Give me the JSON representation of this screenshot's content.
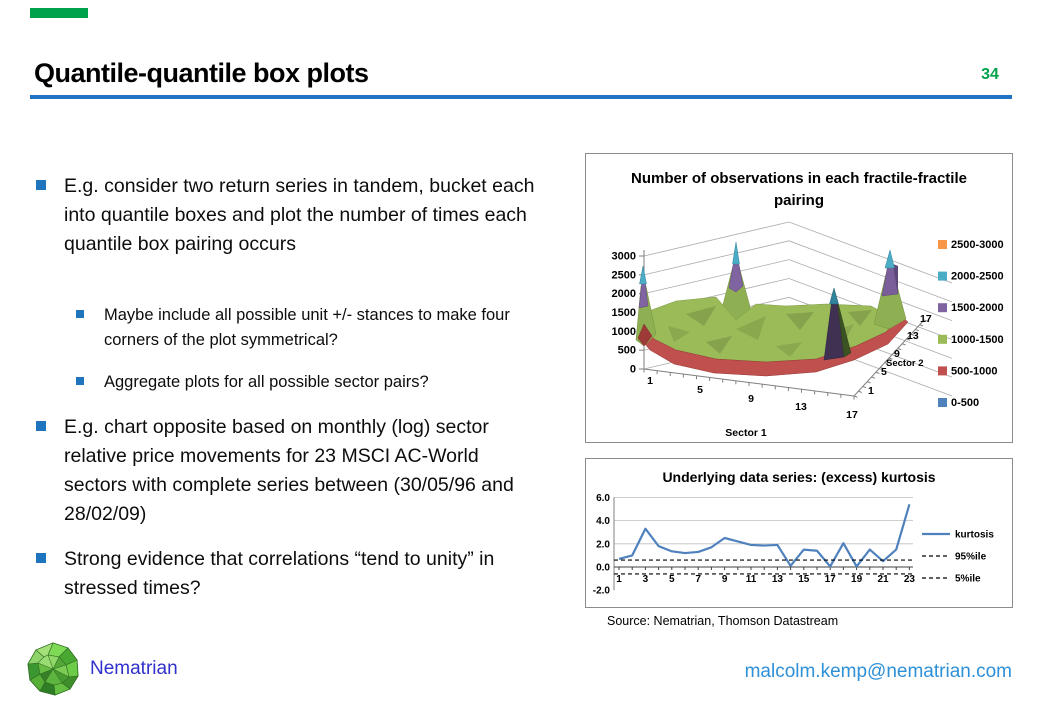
{
  "slide": {
    "title": "Quantile-quantile box plots",
    "page_number": "34",
    "accent_green": "#00A24B",
    "accent_blue": "#1F72C4",
    "bullet_blue": "#1F74BE"
  },
  "bullets": [
    {
      "level": 1,
      "text": "E.g. consider two return series in tandem, bucket each into quantile boxes and plot the number of times each quantile box pairing occurs"
    },
    {
      "level": 2,
      "text": "Maybe include all possible unit +/- stances to make four corners of the plot symmetrical?"
    },
    {
      "level": 2,
      "text": "Aggregate plots for all possible sector pairs?"
    },
    {
      "level": 1,
      "text": "E.g. chart opposite based on monthly (log) sector relative price movements for 23 MSCI AC-World sectors with complete series between (30/05/96 and 28/02/09)"
    },
    {
      "level": 1,
      "text": "Strong evidence that correlations “tend to unity” in stressed times?"
    }
  ],
  "chart_data": [
    {
      "type": "surface",
      "title": "Number of observations in each fractile-fractile pairing",
      "xlabel": "Sector 1",
      "ylabel": "Sector 2",
      "x_ticks": [
        "1",
        "5",
        "9",
        "13",
        "17"
      ],
      "y_ticks": [
        "1",
        "5",
        "9",
        "13",
        "17"
      ],
      "z_ticks": [
        "0",
        "500",
        "1000",
        "1500",
        "2000",
        "2500",
        "3000"
      ],
      "z_range": [
        0,
        3000
      ],
      "x_range": [
        1,
        17
      ],
      "y_range": [
        1,
        17
      ],
      "legend": [
        {
          "label": "2500-3000",
          "color": "#F79646"
        },
        {
          "label": "2000-2500",
          "color": "#4BACC6"
        },
        {
          "label": "1500-2000",
          "color": "#8064A2"
        },
        {
          "label": "1000-1500",
          "color": "#9BBB59"
        },
        {
          "label": "500-1000",
          "color": "#C0504D"
        },
        {
          "label": "0-500",
          "color": "#4F81BD"
        }
      ],
      "surface_summary": {
        "corner_peak_values": {
          "1_1": 2500,
          "1_17": 3100,
          "17_1": 2100,
          "17_17": 3000
        },
        "central_plateau_value": 1200,
        "edge_valley_value": 600
      }
    },
    {
      "type": "line",
      "title": "Underlying data series: (excess) kurtosis",
      "x": [
        1,
        2,
        3,
        4,
        5,
        6,
        7,
        8,
        9,
        10,
        11,
        12,
        13,
        14,
        15,
        16,
        17,
        18,
        19,
        20,
        21,
        22,
        23
      ],
      "x_tick_labels": [
        "1",
        "3",
        "5",
        "7",
        "9",
        "11",
        "13",
        "15",
        "17",
        "19",
        "21",
        "23"
      ],
      "y_tick_labels": [
        "6.0",
        "4.0",
        "2.0",
        "0.0",
        "-2.0"
      ],
      "y_tick_values": [
        6,
        4,
        2,
        0,
        -2
      ],
      "ylim": [
        -2,
        6
      ],
      "grid_values": [
        2,
        4,
        6
      ],
      "series": [
        {
          "name": "kurtosis",
          "style": "solid",
          "color": "#4F81BD",
          "values": [
            0.7,
            1.0,
            3.3,
            1.8,
            1.35,
            1.2,
            1.3,
            1.7,
            2.5,
            2.2,
            1.9,
            1.85,
            1.9,
            0.1,
            1.5,
            1.4,
            0.05,
            2.05,
            0.05,
            1.5,
            0.5,
            1.5,
            5.4
          ]
        },
        {
          "name": "95%ile",
          "style": "dashed",
          "color": "#000000",
          "constant": 0.6
        },
        {
          "name": "5%ile",
          "style": "dashed",
          "color": "#000000",
          "constant": -0.6
        }
      ]
    }
  ],
  "source_note": "Source: Nematrian, Thomson Datastream",
  "footer": {
    "brand": "Nematrian",
    "brand_color": "#3030CC",
    "email": "malcolm.kemp@nematrian.com",
    "email_color": "#2E90D8"
  }
}
